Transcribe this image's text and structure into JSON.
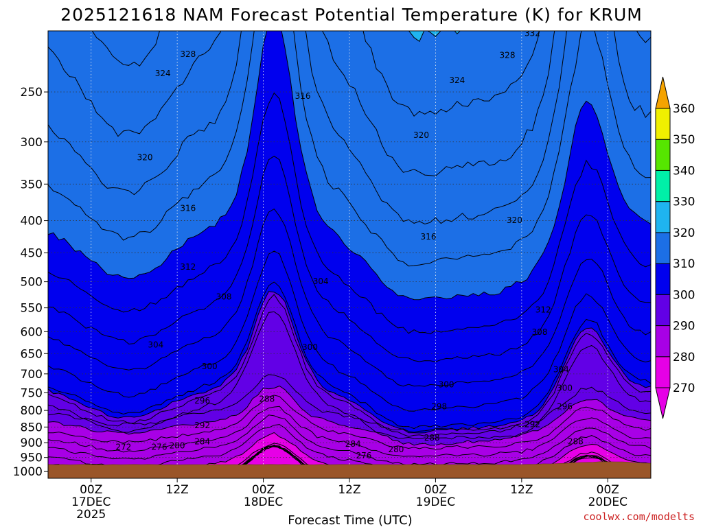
{
  "chart_data": {
    "type": "heatmap",
    "title": "2025121618 NAM Forecast Potential Temperature (K) for KRUM",
    "xlabel": "Forecast Time (UTC)",
    "ylabel": "",
    "credit": "coolwx.com/modelts",
    "x_ticks": [
      {
        "hour": 6,
        "lines": [
          "00Z",
          "17DEC",
          "2025"
        ]
      },
      {
        "hour": 18,
        "lines": [
          "12Z"
        ]
      },
      {
        "hour": 30,
        "lines": [
          "00Z",
          "18DEC"
        ]
      },
      {
        "hour": 42,
        "lines": [
          "12Z"
        ]
      },
      {
        "hour": 54,
        "lines": [
          "00Z",
          "19DEC"
        ]
      },
      {
        "hour": 66,
        "lines": [
          "12Z"
        ]
      },
      {
        "hour": 78,
        "lines": [
          "00Z",
          "20DEC"
        ]
      }
    ],
    "xlim": [
      0,
      84
    ],
    "y_ticks": [
      250,
      300,
      350,
      400,
      450,
      500,
      550,
      600,
      650,
      700,
      750,
      800,
      850,
      900,
      950,
      1000
    ],
    "ylim": [
      1025,
      200
    ],
    "colorbar": {
      "levels": [
        270,
        280,
        290,
        300,
        310,
        320,
        330,
        340,
        350,
        360
      ],
      "colors": [
        "#e600e6",
        "#a800e6",
        "#6200e6",
        "#0000ee",
        "#1c6fe6",
        "#1fb4f0",
        "#00f0a8",
        "#56e600",
        "#f0f000",
        "#f5a300"
      ]
    },
    "contour_labels": [
      {
        "text": "328",
        "hour": 19.5,
        "p": 218
      },
      {
        "text": "324",
        "hour": 16,
        "p": 234
      },
      {
        "text": "320",
        "hour": 13.5,
        "p": 318
      },
      {
        "text": "316",
        "hour": 19.5,
        "p": 383
      },
      {
        "text": "312",
        "hour": 19.5,
        "p": 474
      },
      {
        "text": "308",
        "hour": 24.5,
        "p": 529
      },
      {
        "text": "304",
        "hour": 15,
        "p": 630
      },
      {
        "text": "300",
        "hour": 22.5,
        "p": 682
      },
      {
        "text": "296",
        "hour": 21.5,
        "p": 773
      },
      {
        "text": "292",
        "hour": 21.5,
        "p": 846
      },
      {
        "text": "288",
        "hour": 30.5,
        "p": 768
      },
      {
        "text": "284",
        "hour": 21.5,
        "p": 898
      },
      {
        "text": "280",
        "hour": 18,
        "p": 911
      },
      {
        "text": "276",
        "hour": 15.5,
        "p": 916
      },
      {
        "text": "272",
        "hour": 10.5,
        "p": 916
      },
      {
        "text": "316",
        "hour": 35.5,
        "p": 254
      },
      {
        "text": "304",
        "hour": 38,
        "p": 500
      },
      {
        "text": "300",
        "hour": 36.5,
        "p": 636
      },
      {
        "text": "288",
        "hour": 53.5,
        "p": 885
      },
      {
        "text": "284",
        "hour": 42.5,
        "p": 905
      },
      {
        "text": "280",
        "hour": 48.5,
        "p": 924
      },
      {
        "text": "276",
        "hour": 44,
        "p": 945
      },
      {
        "text": "298",
        "hour": 54.5,
        "p": 790
      },
      {
        "text": "300",
        "hour": 55.5,
        "p": 729
      },
      {
        "text": "320",
        "hour": 52,
        "p": 293
      },
      {
        "text": "316",
        "hour": 53,
        "p": 425
      },
      {
        "text": "324",
        "hour": 57,
        "p": 240
      },
      {
        "text": "328",
        "hour": 64,
        "p": 219
      },
      {
        "text": "332",
        "hour": 67.5,
        "p": 202
      },
      {
        "text": "320",
        "hour": 65,
        "p": 400
      },
      {
        "text": "312",
        "hour": 69,
        "p": 555
      },
      {
        "text": "308",
        "hour": 68.5,
        "p": 602
      },
      {
        "text": "304",
        "hour": 71.5,
        "p": 690
      },
      {
        "text": "300",
        "hour": 72,
        "p": 738
      },
      {
        "text": "296",
        "hour": 72,
        "p": 790
      },
      {
        "text": "292",
        "hour": 67.5,
        "p": 843
      },
      {
        "text": "288",
        "hour": 73.5,
        "p": 898
      }
    ]
  }
}
